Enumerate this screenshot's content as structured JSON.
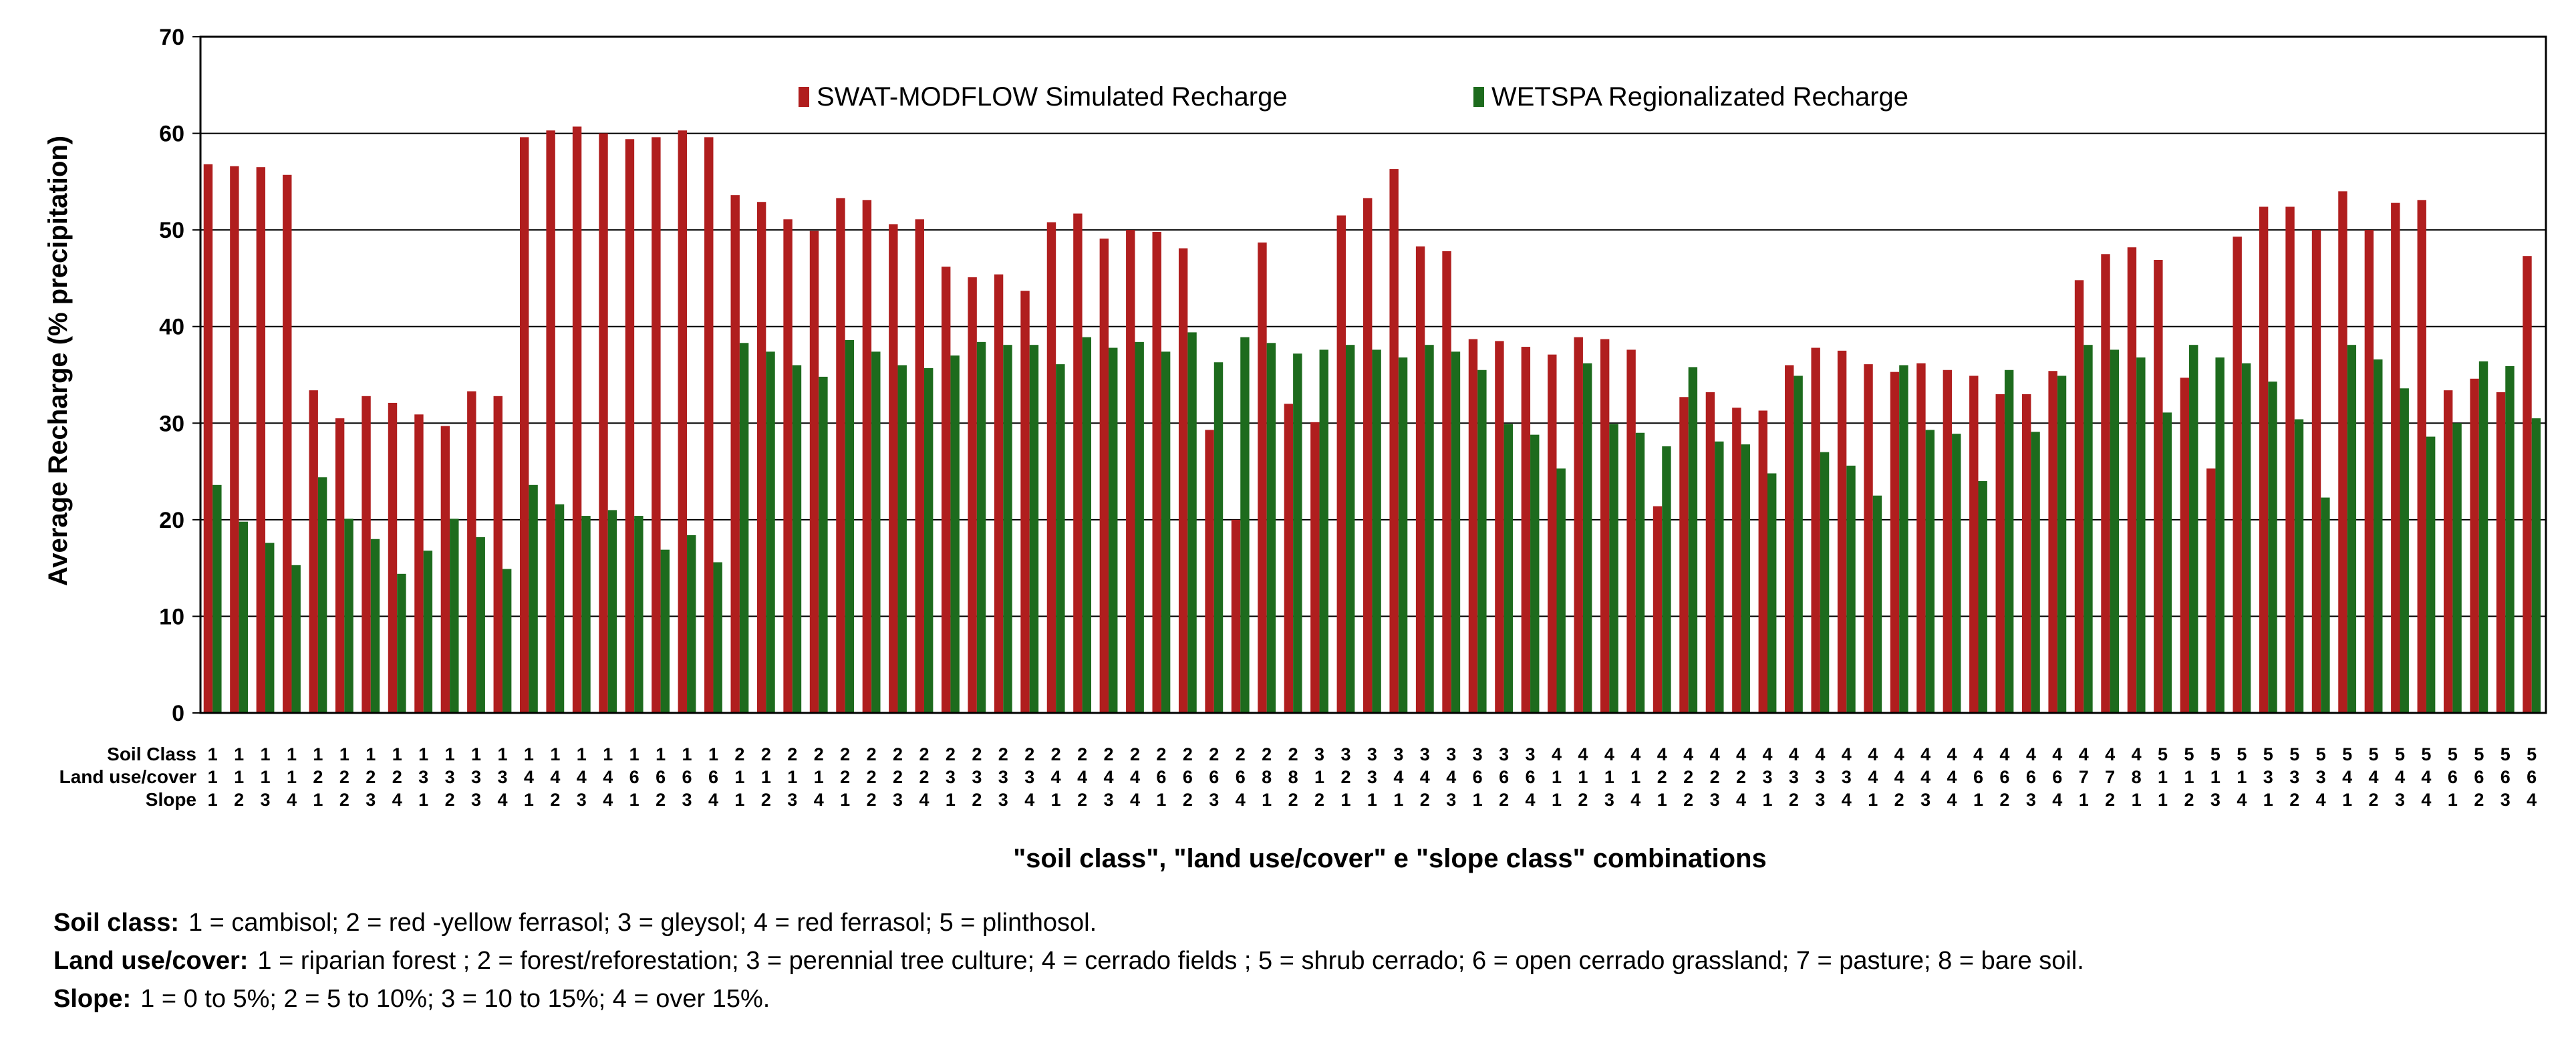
{
  "chart_data": {
    "type": "bar",
    "title": "",
    "xlabel": "\"soil class\", \"land use/cover\"  e \"slope class\" combinations",
    "ylabel": "Average Recharge (% precipitation)",
    "ylim": [
      0,
      70
    ],
    "yticks": [
      0,
      10,
      20,
      30,
      40,
      50,
      60,
      70
    ],
    "grid": "horizontal",
    "legend_position": "top-center",
    "colors": {
      "SWAT-MODFLOW Simulated Recharge": "#b01e1e",
      "WETSPA Regionalizated Recharge": "#1d6b1d"
    },
    "row_labels": [
      "Soil Class",
      "Land use/cover",
      "Slope"
    ],
    "categories": [
      "111",
      "112",
      "113",
      "114",
      "121",
      "122",
      "123",
      "124",
      "131",
      "132",
      "133",
      "134",
      "141",
      "142",
      "143",
      "144",
      "161",
      "162",
      "163",
      "164",
      "211",
      "212",
      "213",
      "214",
      "221",
      "222",
      "223",
      "224",
      "231",
      "232",
      "233",
      "234",
      "241",
      "242",
      "243",
      "244",
      "261",
      "262",
      "263",
      "264",
      "281",
      "282",
      "312",
      "321",
      "331",
      "341",
      "342",
      "343",
      "361",
      "362",
      "364",
      "411",
      "412",
      "413",
      "414",
      "421",
      "422",
      "423",
      "424",
      "431",
      "432",
      "433",
      "434",
      "441",
      "442",
      "443",
      "444",
      "461",
      "462",
      "463",
      "464",
      "471",
      "472",
      "481",
      "511",
      "512",
      "513",
      "514",
      "531",
      "532",
      "534",
      "541",
      "542",
      "543",
      "544",
      "561",
      "562",
      "563",
      "564"
    ],
    "series": [
      {
        "name": "SWAT-MODFLOW Simulated Recharge",
        "values": [
          56.8,
          56.6,
          56.5,
          55.7,
          33.4,
          30.5,
          32.8,
          32.1,
          30.9,
          29.7,
          33.3,
          32.8,
          59.6,
          60.3,
          60.7,
          60.0,
          59.4,
          59.6,
          60.3,
          59.6,
          53.6,
          52.9,
          51.1,
          49.9,
          53.3,
          53.1,
          50.6,
          51.1,
          46.2,
          45.1,
          45.4,
          43.7,
          50.8,
          51.7,
          49.1,
          50.0,
          49.8,
          48.1,
          29.3,
          20.0,
          48.7,
          32.0,
          30.1,
          51.5,
          53.3,
          56.3,
          48.3,
          47.8,
          38.7,
          38.5,
          37.9,
          37.1,
          38.9,
          38.7,
          37.6,
          21.4,
          32.7,
          33.2,
          31.6,
          31.3,
          36.0,
          37.8,
          37.5,
          36.1,
          35.3,
          36.2,
          35.5,
          34.9,
          33.0,
          33.0,
          35.4,
          44.8,
          47.5,
          48.2,
          46.9,
          34.7,
          25.3,
          49.3,
          52.4,
          52.4,
          50.0,
          54.0,
          50.0,
          52.8,
          53.1,
          33.4,
          34.6,
          33.2,
          47.3
        ]
      },
      {
        "name": "WETSPA Regionalizated Recharge",
        "values": [
          23.6,
          19.8,
          17.6,
          15.3,
          24.4,
          20.1,
          18.0,
          14.4,
          16.8,
          20.1,
          18.2,
          14.9,
          23.6,
          21.6,
          20.4,
          21.0,
          20.4,
          16.9,
          18.4,
          15.6,
          38.3,
          37.4,
          36.0,
          34.8,
          38.6,
          37.4,
          36.0,
          35.7,
          37.0,
          38.4,
          38.1,
          38.1,
          36.1,
          38.9,
          37.8,
          38.4,
          37.4,
          39.4,
          36.3,
          38.9,
          38.3,
          37.2,
          37.6,
          38.1,
          37.6,
          36.8,
          38.1,
          37.4,
          35.5,
          29.9,
          28.8,
          25.3,
          36.2,
          29.9,
          29.0,
          27.6,
          35.8,
          28.1,
          27.8,
          24.8,
          34.9,
          27.0,
          25.6,
          22.5,
          36.0,
          29.3,
          28.9,
          24.0,
          35.5,
          29.1,
          34.9,
          38.1,
          37.6,
          36.8,
          31.1,
          38.1,
          36.8,
          36.2,
          34.3,
          30.4,
          22.3,
          38.1,
          36.6,
          33.6,
          28.6,
          30.0,
          36.4,
          35.9,
          30.5
        ]
      }
    ]
  },
  "legend": {
    "items": [
      {
        "label": "SWAT-MODFLOW Simulated Recharge",
        "color": "#b01e1e"
      },
      {
        "label": "WETSPA Regionalizated Recharge",
        "color": "#1d6b1d"
      }
    ]
  },
  "notes": {
    "soil_key": "Soil class:",
    "soil_text": "1 = cambisol; 2 = red -yellow ferrasol; 3 = gleysol; 4 = red   ferrasol; 5 = plinthosol.",
    "landuse_key": "Land use/cover:",
    "landuse_text": "1 = riparian forest ; 2 = forest/reforestation; 3 = perennial  tree culture; 4 = cerrado  fields ; 5 = shrub cerrado; 6 = open cerrado grassland; 7 = pasture; 8 = bare   soil.",
    "slope_key": "Slope:",
    "slope_text": "1 = 0 to 5%; 2 = 5 to 10%; 3 = 10 to 15%; 4 = over 15%."
  }
}
